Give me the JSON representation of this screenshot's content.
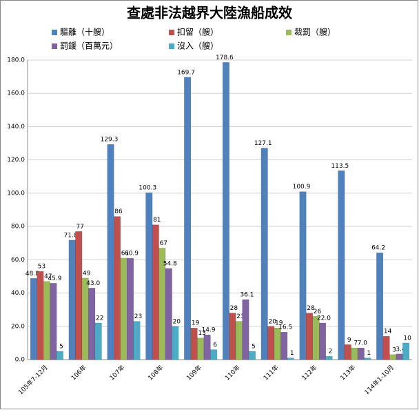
{
  "chart_data": {
    "type": "bar",
    "title": "查處非法越界大陸漁船成效",
    "categories": [
      "105年7-12月",
      "106年",
      "107年",
      "108年",
      "109年",
      "110年",
      "111年",
      "112年",
      "113年",
      "114年1-10月"
    ],
    "series": [
      {
        "name": "驅離（十艘）",
        "color": "#4f81bd",
        "values": [
          48.8,
          71.8,
          129.3,
          100.3,
          169.7,
          178.6,
          127.1,
          100.9,
          113.5,
          64.2
        ]
      },
      {
        "name": "扣留（艘）",
        "color": "#c0504d",
        "values": [
          53,
          77,
          86,
          81,
          19,
          28,
          20,
          28,
          9,
          14
        ]
      },
      {
        "name": "裁罰（艘）",
        "color": "#9bbb59",
        "values": [
          47,
          49,
          61,
          67,
          13,
          23,
          19,
          26,
          7,
          3
        ]
      },
      {
        "name": "罰鍰（百萬元）",
        "color": "#8064a2",
        "values": [
          45.9,
          43.0,
          60.9,
          54.8,
          14.9,
          36.1,
          16.5,
          22.0,
          7.0,
          3.4
        ],
        "value_labels": [
          "45.9",
          "43.0",
          "60.9",
          "54.8",
          "14.9",
          "36.1",
          "16.5",
          "22.0",
          "7.0",
          "3.4"
        ]
      },
      {
        "name": "沒入（艘）",
        "color": "#4bacc6",
        "values": [
          5,
          22,
          23,
          20,
          6,
          5,
          1,
          2,
          1,
          10
        ]
      }
    ],
    "ylim": [
      0,
      180
    ],
    "yticks": [
      {
        "value": 0,
        "label": "0.0"
      },
      {
        "value": 20,
        "label": "20.0"
      },
      {
        "value": 40,
        "label": "40.0"
      },
      {
        "value": 60,
        "label": "60.0"
      },
      {
        "value": 80,
        "label": "80.0"
      },
      {
        "value": 100,
        "label": "100.0"
      },
      {
        "value": 120,
        "label": "120.0"
      },
      {
        "value": 140,
        "label": "140.0"
      },
      {
        "value": 160,
        "label": "160.0"
      },
      {
        "value": 180,
        "label": "180.0"
      }
    ],
    "grid": true
  }
}
